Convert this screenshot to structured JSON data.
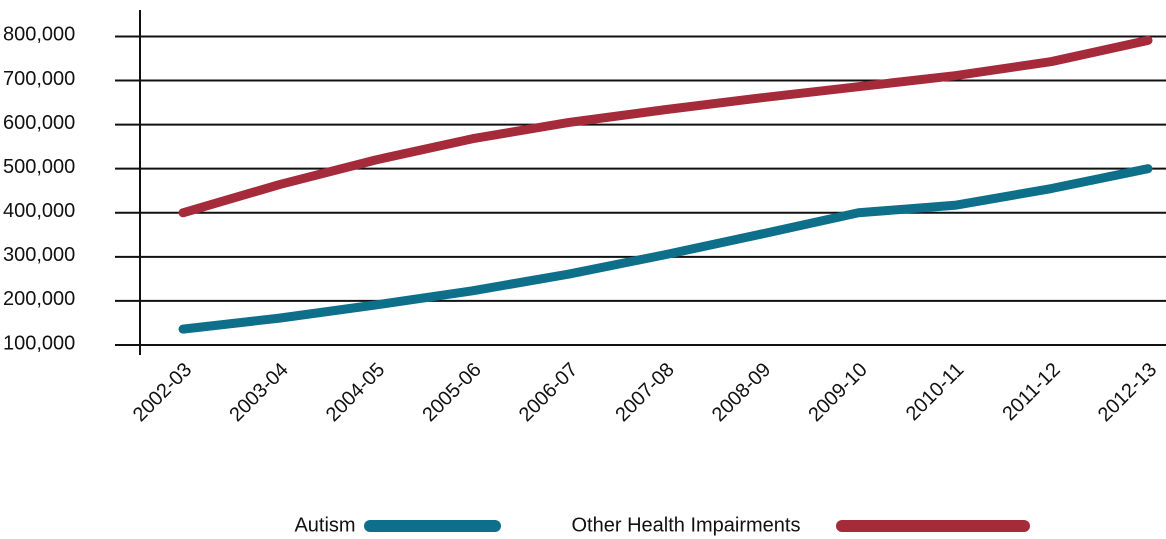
{
  "chart_data": {
    "type": "line",
    "categories": [
      "2002-03",
      "2003-04",
      "2004-05",
      "2005-06",
      "2006-07",
      "2007-08",
      "2008-09",
      "2009-10",
      "2010-11",
      "2011-12",
      "2012-13"
    ],
    "series": [
      {
        "name": "Autism",
        "color": "#0e6f8a",
        "values": [
          136000,
          161000,
          191000,
          223000,
          261000,
          305000,
          352000,
          400000,
          417000,
          455000,
          500000
        ]
      },
      {
        "name": "Other Health Impairments",
        "color": "#a52a3a",
        "values": [
          400000,
          464000,
          520000,
          568000,
          605000,
          634000,
          661000,
          686000,
          711000,
          743000,
          791000
        ]
      }
    ],
    "ylim": [
      100000,
      860000
    ],
    "yticks": [
      {
        "value": 100000,
        "label": "100,000"
      },
      {
        "value": 200000,
        "label": "200,000"
      },
      {
        "value": 300000,
        "label": "300,000"
      },
      {
        "value": 400000,
        "label": "400,000"
      },
      {
        "value": 500000,
        "label": "500,000"
      },
      {
        "value": 600000,
        "label": "600,000"
      },
      {
        "value": 700000,
        "label": "700,000"
      },
      {
        "value": 800000,
        "label": "800,000"
      }
    ],
    "grid": true,
    "legend": "bottom"
  }
}
